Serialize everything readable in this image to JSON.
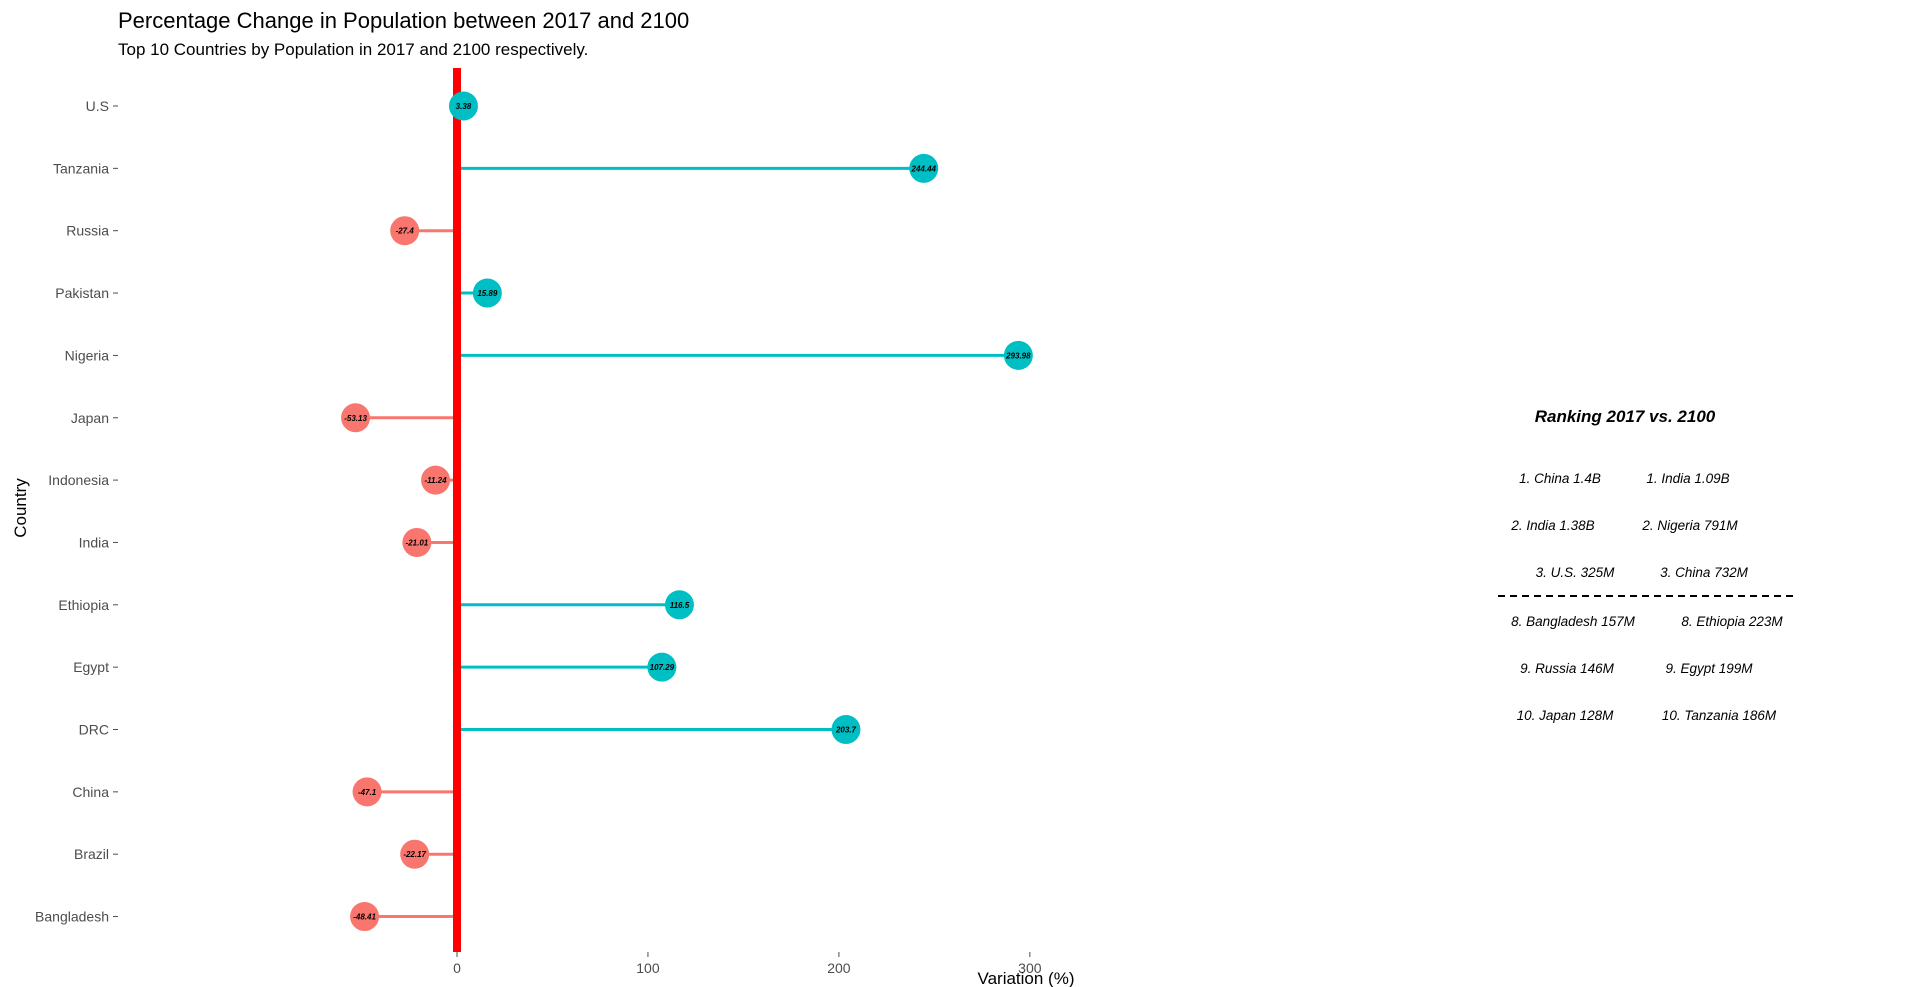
{
  "chart_data": {
    "type": "lollipop",
    "title": "Percentage Change in Population between 2017 and 2100",
    "subtitle": "Top 10 Countries by Population in 2017 and 2100 respectively.",
    "xlabel": "Variation (%)",
    "ylabel": "Country",
    "xlim": [
      -70,
      300
    ],
    "xticks": [
      0,
      100,
      200,
      300
    ],
    "grid": false,
    "zero_line_color": "#ff0000",
    "colors": {
      "negative": "#f8766d",
      "positive": "#00bfc4"
    },
    "categories": [
      "U.S",
      "Tanzania",
      "Russia",
      "Pakistan",
      "Nigeria",
      "Japan",
      "Indonesia",
      "India",
      "Ethiopia",
      "Egypt",
      "DRC",
      "China",
      "Brazil",
      "Bangladesh"
    ],
    "values": [
      3.38,
      244.44,
      -27.4,
      15.89,
      293.98,
      -53.13,
      -11.24,
      -21.01,
      116.5,
      107.29,
      203.7,
      -47.1,
      -22.17,
      -48.41
    ],
    "annotation": {
      "title": "Ranking 2017 vs. 2100",
      "rows_top": [
        [
          "1. China 1.4B",
          "1. India 1.09B"
        ],
        [
          "2. India 1.38B",
          "2. Nigeria 791M"
        ],
        [
          "3. U.S. 325M",
          "3. China 732M"
        ]
      ],
      "rows_bottom": [
        [
          "8. Bangladesh 157M",
          "8. Ethiopia 223M"
        ],
        [
          "9. Russia 146M",
          "9. Egypt 199M"
        ],
        [
          "10. Japan 128M",
          "10. Tanzania 186M"
        ]
      ]
    }
  }
}
